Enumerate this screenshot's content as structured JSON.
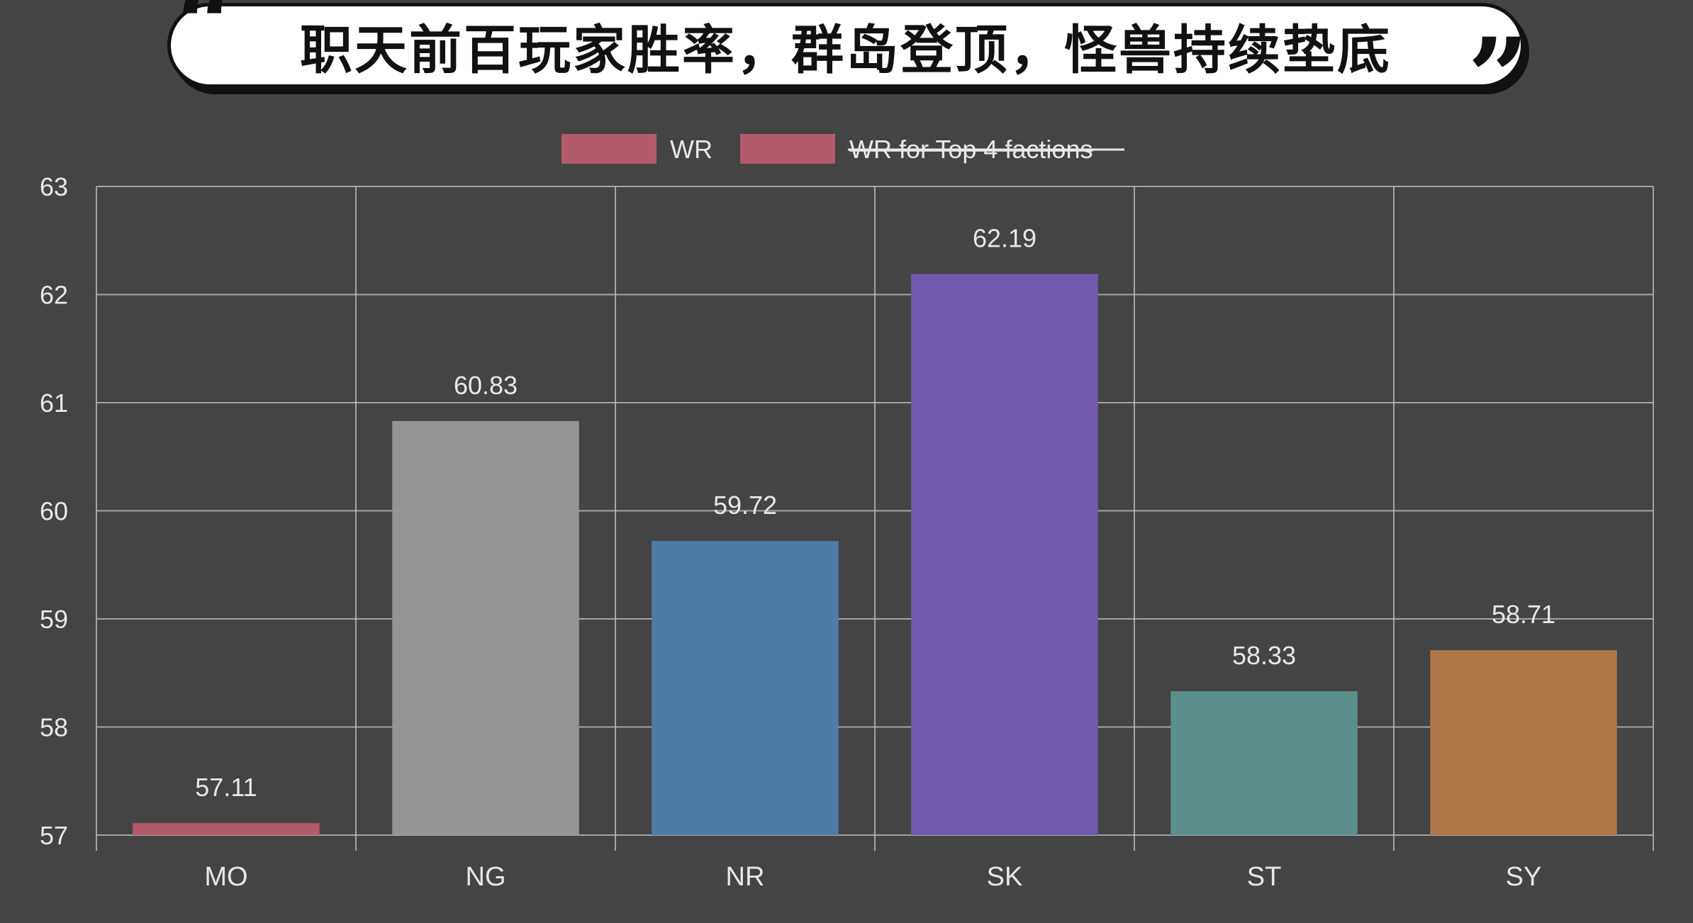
{
  "title": "职天前百玩家胜率，群岛登顶，怪兽持续垫底",
  "quotes": {
    "open": "“",
    "close": "”"
  },
  "chart_data": {
    "type": "bar",
    "categories": [
      "MO",
      "NG",
      "NR",
      "SK",
      "ST",
      "SY"
    ],
    "series": [
      {
        "name": "WR",
        "values": [
          57.11,
          60.83,
          59.72,
          62.19,
          58.33,
          58.71
        ],
        "colors": [
          "#b35a6b",
          "#969594",
          "#4d7ca6",
          "#7159ae",
          "#5a8f8b",
          "#ae7748"
        ]
      }
    ],
    "hidden_series": [
      {
        "name": "WR for Top 4 factions",
        "color": "#b35a6b",
        "hidden": true
      }
    ],
    "data_labels": [
      "57.11",
      "60.83",
      "59.72",
      "62.19",
      "58.33",
      "58.71"
    ],
    "ylim": [
      57,
      63
    ],
    "yticks": [
      57,
      58,
      59,
      60,
      61,
      62,
      63
    ],
    "grid": true,
    "legend_position": "top-center",
    "xlabel": "",
    "ylabel": ""
  },
  "colors": {
    "background": "#444444",
    "grid": "#bdbdbd",
    "axis_text": "#e8e8e8",
    "legend_swatch": "#b35a6b"
  }
}
